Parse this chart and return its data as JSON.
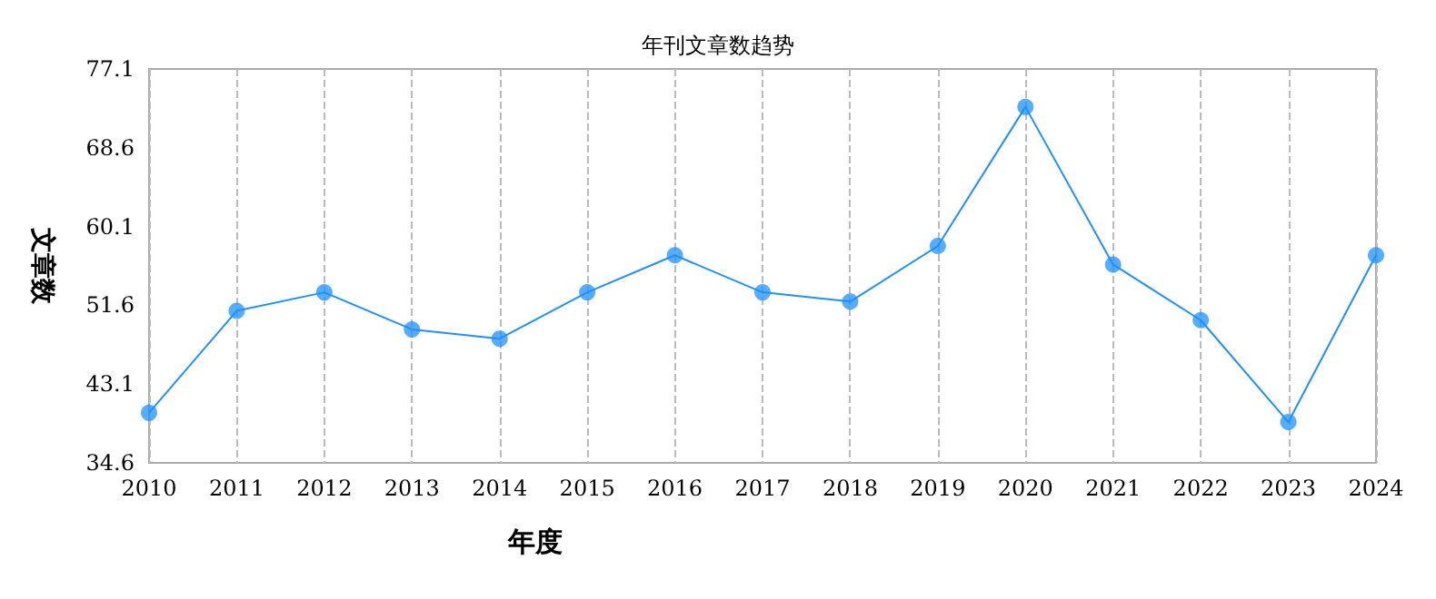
{
  "chart_data": {
    "type": "line",
    "title": "年刊文章数趋势",
    "xlabel": "年度",
    "ylabel": "文章数",
    "categories": [
      "2010",
      "2011",
      "2012",
      "2013",
      "2014",
      "2015",
      "2016",
      "2017",
      "2018",
      "2019",
      "2020",
      "2021",
      "2022",
      "2023",
      "2024"
    ],
    "series": [
      {
        "color": "#1e90ff",
        "values": [
          40,
          51,
          53,
          49,
          48,
          53,
          57,
          53,
          52,
          58,
          73,
          56,
          50,
          39,
          57
        ]
      }
    ],
    "ylim": [
      34.6,
      77.1
    ],
    "yticks": [
      34.6,
      43.1,
      51.6,
      60.1,
      68.6,
      77.1
    ],
    "grid": "x",
    "marker": "circle",
    "line_style": "solid"
  }
}
